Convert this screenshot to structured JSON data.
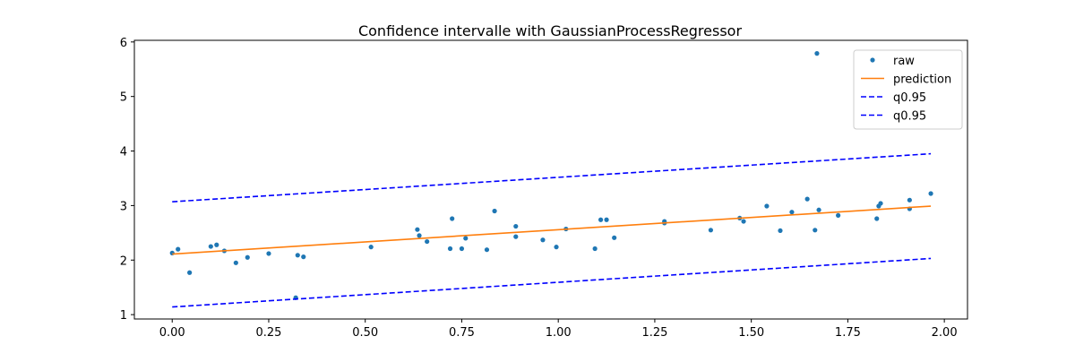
{
  "chart_data": {
    "type": "scatter",
    "title": "Confidence intervalle with GaussianProcessRegressor",
    "xlabel": "",
    "ylabel": "",
    "xlim": [
      -0.098,
      2.06
    ],
    "ylim": [
      0.92,
      6.03
    ],
    "xticks": [
      0.0,
      0.25,
      0.5,
      0.75,
      1.0,
      1.25,
      1.5,
      1.75,
      2.0
    ],
    "xtick_labels": [
      "0.00",
      "0.25",
      "0.50",
      "0.75",
      "1.00",
      "1.25",
      "1.50",
      "1.75",
      "2.00"
    ],
    "yticks": [
      1,
      2,
      3,
      4,
      5,
      6
    ],
    "ytick_labels": [
      "1",
      "2",
      "3",
      "4",
      "5",
      "6"
    ],
    "grid": false,
    "legend_position": "top-right",
    "series": [
      {
        "name": "raw",
        "kind": "points",
        "color": "#1f77b4",
        "x": [
          0.0,
          0.015,
          0.045,
          0.1,
          0.115,
          0.135,
          0.165,
          0.195,
          0.25,
          0.32,
          0.325,
          0.34,
          0.515,
          0.635,
          0.64,
          0.66,
          0.72,
          0.725,
          0.75,
          0.76,
          0.815,
          0.835,
          0.89,
          0.89,
          0.96,
          0.995,
          1.02,
          1.095,
          1.11,
          1.125,
          1.145,
          1.275,
          1.275,
          1.395,
          1.47,
          1.48,
          1.54,
          1.575,
          1.605,
          1.645,
          1.665,
          1.67,
          1.675,
          1.725,
          1.825,
          1.83,
          1.835,
          1.91,
          1.91,
          1.965
        ],
        "y": [
          2.13,
          2.2,
          1.77,
          2.25,
          2.28,
          2.17,
          1.95,
          2.05,
          2.12,
          1.31,
          2.09,
          2.06,
          2.24,
          2.56,
          2.45,
          2.34,
          2.21,
          2.76,
          2.21,
          2.4,
          2.19,
          2.9,
          2.62,
          2.43,
          2.37,
          2.24,
          2.57,
          2.21,
          2.74,
          2.74,
          2.41,
          2.68,
          2.71,
          2.55,
          2.77,
          2.71,
          2.99,
          2.54,
          2.88,
          3.12,
          2.55,
          5.79,
          2.92,
          2.82,
          2.76,
          2.99,
          3.04,
          3.1,
          2.94,
          3.22
        ]
      },
      {
        "name": "prediction",
        "kind": "line",
        "color": "#ff7f0e",
        "dash": false,
        "x": [
          0.0,
          1.965
        ],
        "y": [
          2.11,
          2.99
        ]
      },
      {
        "name": "q0.95",
        "kind": "line",
        "color": "#0000ff",
        "dash": true,
        "x": [
          0.0,
          1.965
        ],
        "y": [
          3.07,
          3.95
        ]
      },
      {
        "name": "q0.95",
        "kind": "line",
        "color": "#0000ff",
        "dash": true,
        "x": [
          0.0,
          1.965
        ],
        "y": [
          1.14,
          2.03
        ]
      }
    ]
  }
}
